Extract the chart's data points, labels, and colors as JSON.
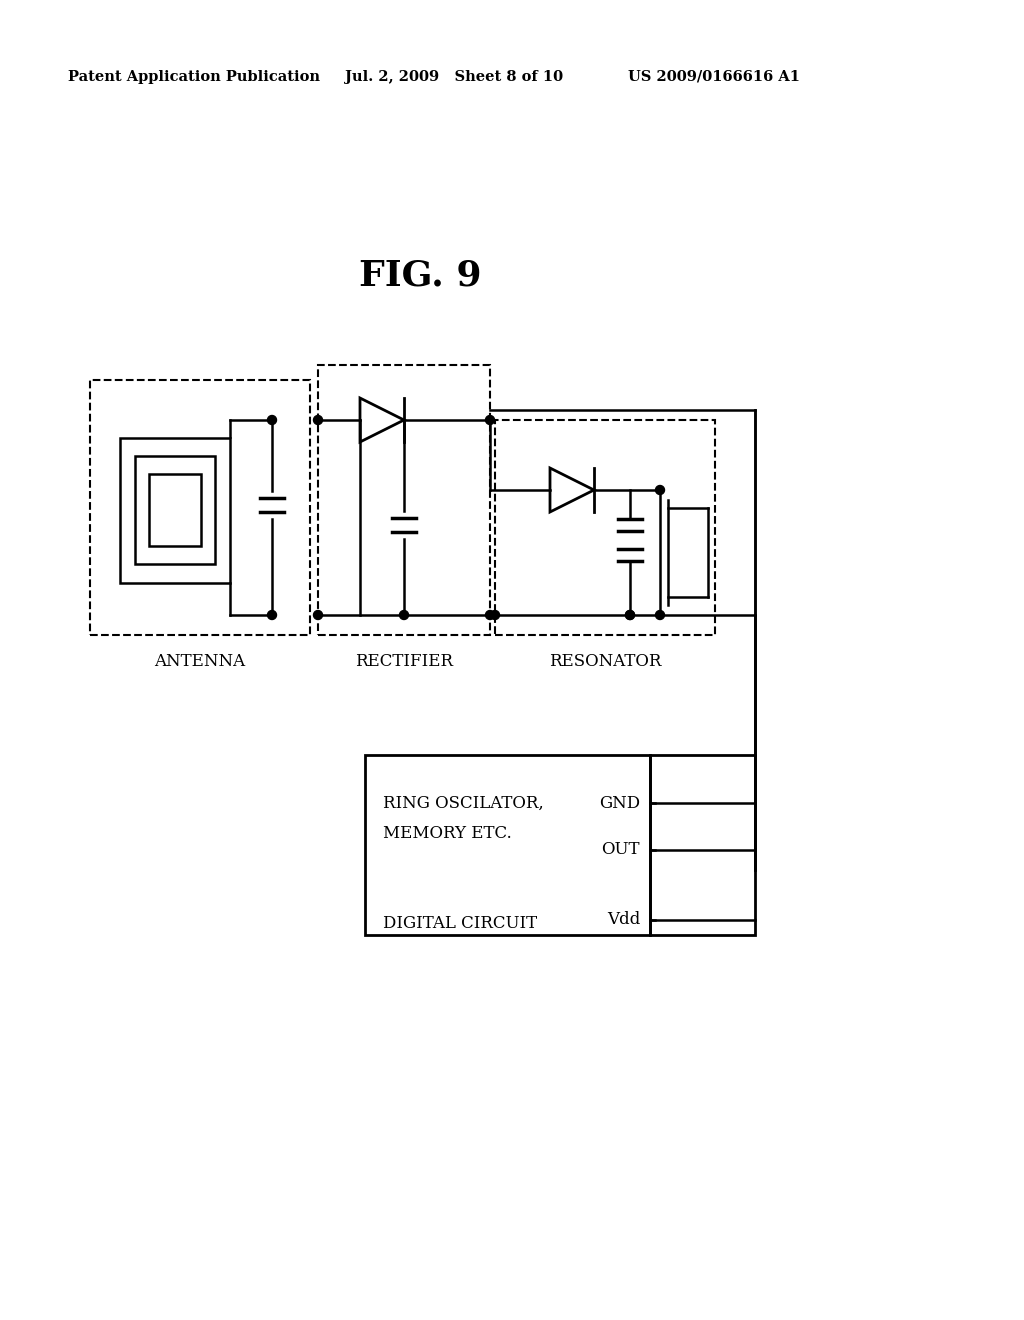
{
  "header_left": "Patent Application Publication",
  "header_mid": "Jul. 2, 2009   Sheet 8 of 10",
  "header_right": "US 2009/0166616 A1",
  "title": "FIG. 9",
  "label_antenna": "ANTENNA",
  "label_rectifier": "RECTIFIER",
  "label_resonator": "RESONATOR",
  "label_ring": "RING OSCILATOR,",
  "label_memory": "MEMORY ETC.",
  "label_digital": "DIGITAL CIRCUIT",
  "label_gnd": "GND",
  "label_out": "OUT",
  "label_vdd": "Vdd",
  "bg_color": "#ffffff"
}
